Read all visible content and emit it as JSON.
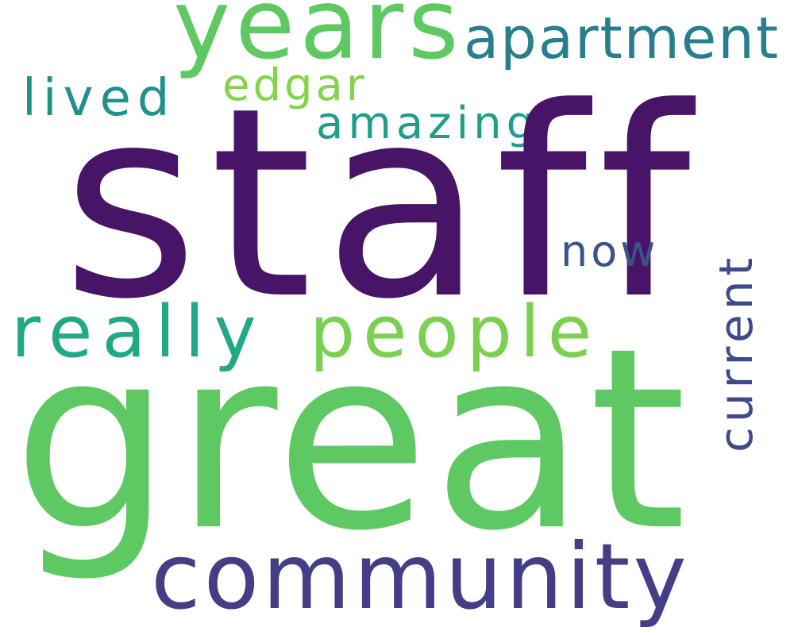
{
  "wordcloud": {
    "words": {
      "staff": "staff",
      "great": "great",
      "years": "years",
      "apartment": "apartment",
      "edgar": "edgar",
      "lived": "lived",
      "amazing": "amazing",
      "now": "now",
      "really": "really",
      "people": "people",
      "community": "community",
      "current": "current"
    },
    "colors": {
      "staff": "#481467",
      "great": "#5ec962",
      "years": "#5ec962",
      "apartment": "#277f8e",
      "edgar": "#84d44b",
      "lived": "#21918c",
      "amazing": "#1f9e89",
      "now": "#3b528b",
      "really": "#22a884",
      "people": "#7ad151",
      "community": "#433e85",
      "current": "#3e4a89"
    },
    "orientation": {
      "current": "vertical"
    }
  }
}
